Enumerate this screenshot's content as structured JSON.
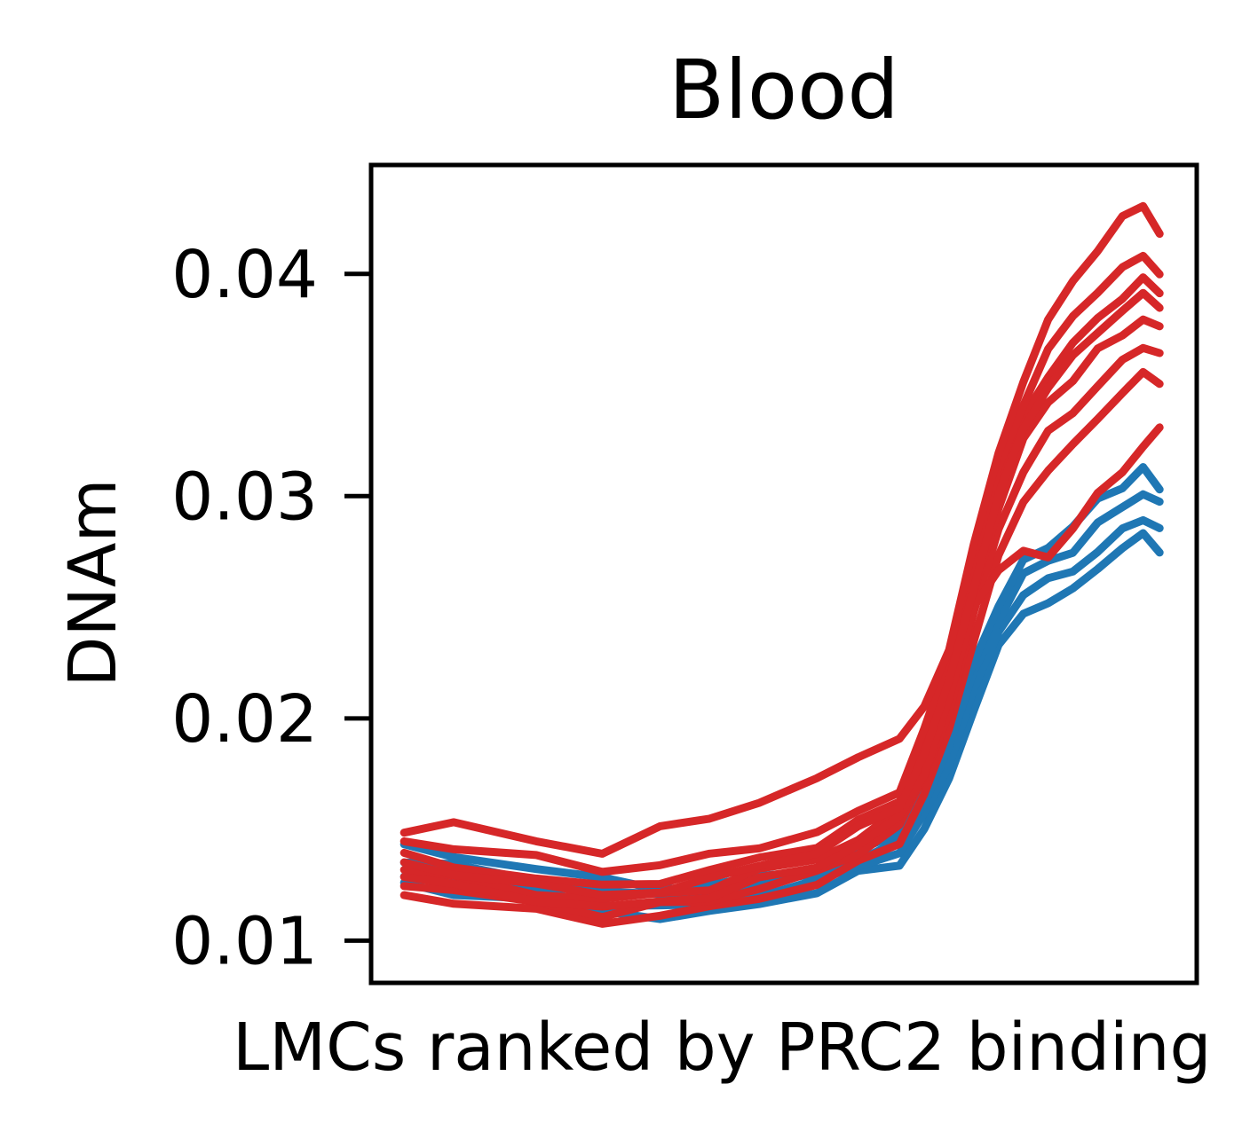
{
  "chart_data": {
    "type": "line",
    "title": "Blood",
    "xlabel": "LMCs ranked by PRC2 binding",
    "ylabel": "DNAm",
    "xlim": [
      0,
      1
    ],
    "ylim": [
      0.0081,
      0.0449
    ],
    "x_ticks_shown": false,
    "yticks": [
      0.01,
      0.02,
      0.03,
      0.04
    ],
    "ytick_labels": [
      "0.01",
      "0.02",
      "0.03",
      "0.04"
    ],
    "grid": false,
    "legend": "none",
    "colors": {
      "blue": "#1f77b4",
      "red": "#d62728"
    },
    "x": [
      0.04,
      0.1,
      0.2,
      0.28,
      0.35,
      0.41,
      0.47,
      0.54,
      0.59,
      0.64,
      0.67,
      0.7,
      0.73,
      0.76,
      0.79,
      0.82,
      0.85,
      0.88,
      0.91,
      0.935,
      0.955
    ],
    "series": [
      {
        "group": "blue",
        "values": [
          0.0125,
          0.0122,
          0.0118,
          0.0113,
          0.0111,
          0.0112,
          0.0117,
          0.0122,
          0.013,
          0.0135,
          0.015,
          0.0172,
          0.0205,
          0.0232,
          0.0247,
          0.0253,
          0.0257,
          0.0268,
          0.0277,
          0.0282,
          0.0276
        ]
      },
      {
        "group": "blue",
        "values": [
          0.013,
          0.0127,
          0.0122,
          0.0117,
          0.0115,
          0.0116,
          0.0121,
          0.0126,
          0.0134,
          0.014,
          0.0156,
          0.018,
          0.0213,
          0.0238,
          0.0257,
          0.0262,
          0.0266,
          0.0276,
          0.0284,
          0.029,
          0.0286
        ]
      },
      {
        "group": "blue",
        "values": [
          0.0136,
          0.0133,
          0.0128,
          0.0122,
          0.012,
          0.0121,
          0.0125,
          0.013,
          0.0137,
          0.0144,
          0.0162,
          0.0188,
          0.022,
          0.0245,
          0.0265,
          0.027,
          0.0276,
          0.0287,
          0.0295,
          0.0302,
          0.0296
        ]
      },
      {
        "group": "blue",
        "values": [
          0.0142,
          0.0138,
          0.0133,
          0.0127,
          0.0124,
          0.0125,
          0.0128,
          0.0133,
          0.014,
          0.0148,
          0.0168,
          0.0196,
          0.0226,
          0.0251,
          0.027,
          0.0278,
          0.0286,
          0.0298,
          0.0305,
          0.0312,
          0.0303
        ]
      },
      {
        "group": "red",
        "values": [
          0.012,
          0.0118,
          0.0113,
          0.0108,
          0.0112,
          0.0114,
          0.012,
          0.0125,
          0.0135,
          0.0145,
          0.0165,
          0.0195,
          0.0236,
          0.0272,
          0.0298,
          0.0312,
          0.0322,
          0.0336,
          0.0346,
          0.0355,
          0.0352
        ]
      },
      {
        "group": "red",
        "values": [
          0.0126,
          0.0122,
          0.0117,
          0.0112,
          0.0116,
          0.0118,
          0.0124,
          0.013,
          0.014,
          0.0152,
          0.0173,
          0.0204,
          0.0247,
          0.0285,
          0.0312,
          0.0328,
          0.0338,
          0.035,
          0.036,
          0.0368,
          0.0364
        ]
      },
      {
        "group": "red",
        "values": [
          0.0132,
          0.0128,
          0.0122,
          0.0118,
          0.0121,
          0.0124,
          0.0131,
          0.0137,
          0.0146,
          0.0158,
          0.018,
          0.0212,
          0.0256,
          0.0296,
          0.0325,
          0.0342,
          0.0353,
          0.0365,
          0.0373,
          0.038,
          0.0375
        ]
      },
      {
        "group": "red",
        "values": [
          0.0138,
          0.0134,
          0.0128,
          0.0124,
          0.0127,
          0.0131,
          0.0137,
          0.0143,
          0.0153,
          0.0163,
          0.0187,
          0.022,
          0.0265,
          0.0305,
          0.0335,
          0.0355,
          0.0368,
          0.038,
          0.039,
          0.0397,
          0.0392
        ]
      },
      {
        "group": "red",
        "values": [
          0.0145,
          0.0142,
          0.0137,
          0.0132,
          0.0134,
          0.0138,
          0.0143,
          0.0148,
          0.0158,
          0.0168,
          0.0194,
          0.0228,
          0.0272,
          0.0312,
          0.0342,
          0.0366,
          0.038,
          0.0393,
          0.0402,
          0.0408,
          0.0401
        ]
      },
      {
        "group": "red",
        "values": [
          0.015,
          0.0152,
          0.0145,
          0.014,
          0.015,
          0.0156,
          0.0162,
          0.0172,
          0.0184,
          0.019,
          0.0205,
          0.0232,
          0.0277,
          0.032,
          0.0352,
          0.0378,
          0.0398,
          0.041,
          0.0425,
          0.0432,
          0.0417
        ]
      },
      {
        "group": "red",
        "values": [
          0.0128,
          0.0125,
          0.0119,
          0.0114,
          0.0118,
          0.012,
          0.0127,
          0.0134,
          0.0143,
          0.0155,
          0.0176,
          0.0208,
          0.025,
          0.0268,
          0.0274,
          0.0273,
          0.0286,
          0.03,
          0.0312,
          0.0322,
          0.033
        ]
      },
      {
        "group": "red",
        "values": [
          0.0134,
          0.0131,
          0.0125,
          0.012,
          0.0123,
          0.0127,
          0.0134,
          0.014,
          0.015,
          0.0161,
          0.0184,
          0.0216,
          0.026,
          0.03,
          0.033,
          0.035,
          0.0362,
          0.0374,
          0.0384,
          0.039,
          0.0386
        ]
      }
    ]
  }
}
